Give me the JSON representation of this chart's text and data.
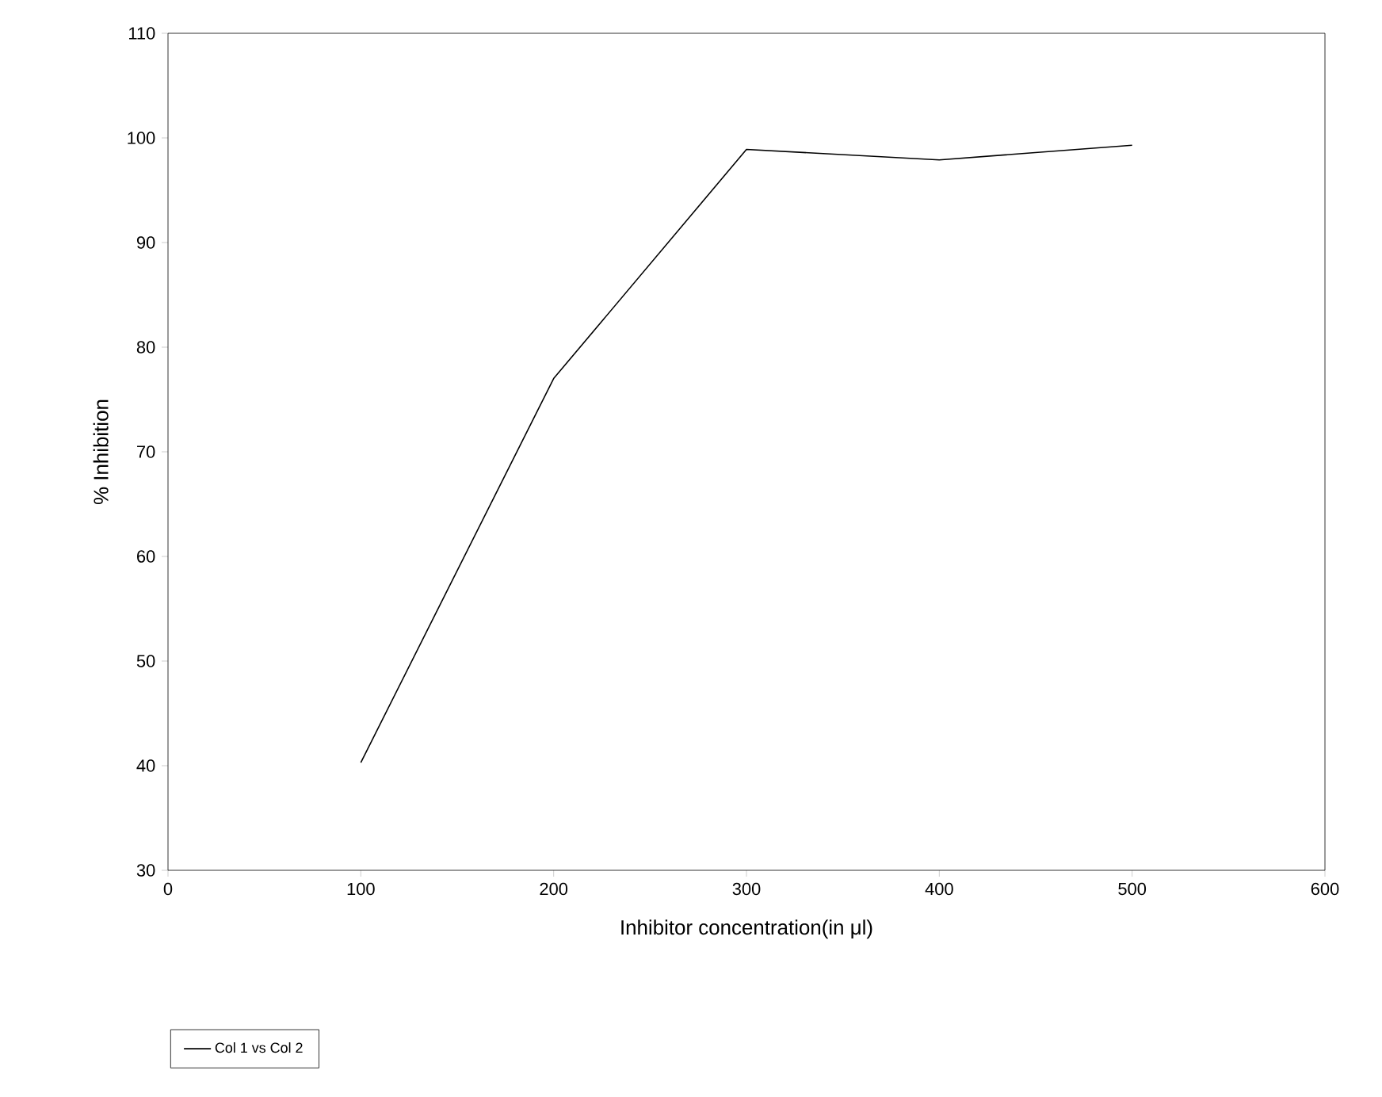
{
  "chart_data": {
    "type": "line",
    "xlabel": "Inhibitor concentration(in μl)",
    "ylabel": "% Inhibition",
    "x": [
      100,
      200,
      300,
      400,
      500
    ],
    "series": [
      {
        "name": "Col 1 vs Col 2",
        "color": "#000000",
        "values": [
          40.3,
          77,
          98.9,
          97.9,
          99.3
        ]
      }
    ],
    "xlim": [
      0,
      600
    ],
    "xticks": [
      0,
      100,
      200,
      300,
      400,
      500,
      600
    ],
    "ylim": [
      30,
      110
    ],
    "yticks": [
      30,
      40,
      50,
      60,
      70,
      80,
      90,
      100,
      110
    ],
    "legend": "bottom left",
    "marker": "none",
    "line_style": "solid"
  }
}
